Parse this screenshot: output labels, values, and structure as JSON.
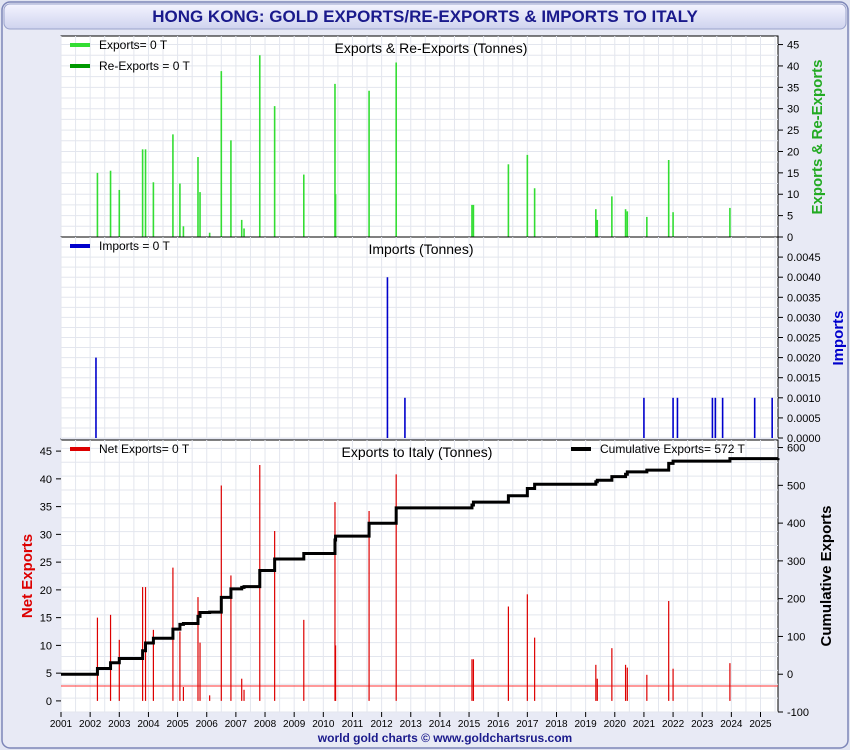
{
  "header": {
    "title": "HONG KONG: GOLD EXPORTS/RE-EXPORTS & IMPORTS TO ITALY"
  },
  "footer": {
    "credit": "world gold charts © www.goldchartsrus.com"
  },
  "colors": {
    "exports": "#33dd33",
    "reexports": "#009900",
    "imports": "#0000cc",
    "net": "#dd0000",
    "cumulative": "#000000",
    "title_text": "#1a1a8c"
  },
  "x_axis": {
    "min": 2001.0,
    "max": 2025.6,
    "ticks": [
      "2001",
      "2002",
      "2003",
      "2004",
      "2005",
      "2006",
      "2007",
      "2008",
      "2009",
      "2010",
      "2011",
      "2012",
      "2013",
      "2014",
      "2015",
      "2016",
      "2017",
      "2018",
      "2019",
      "2020",
      "2021",
      "2022",
      "2023",
      "2024",
      "2025"
    ]
  },
  "chart_data": [
    {
      "type": "bar",
      "title": "Exports & Re-Exports (Tonnes)",
      "ylabel": "Exports & Re-Exports",
      "ylim": [
        0,
        47
      ],
      "yticks": [
        "0",
        "5",
        "10",
        "15",
        "20",
        "25",
        "30",
        "35",
        "40",
        "45"
      ],
      "legend": [
        "Exports= 0 T",
        "Re-Exports = 0 T"
      ],
      "series": [
        {
          "name": "Exports",
          "x": [
            2002.25,
            2002.7,
            2003.0,
            2003.8,
            2003.9,
            2004.17,
            2004.84,
            2005.08,
            2005.2,
            2005.7,
            2005.77,
            2006.1,
            2006.5,
            2006.83,
            2007.2,
            2007.28,
            2007.82,
            2008.33,
            2009.33,
            2010.4,
            2010.42,
            2011.57,
            2012.5,
            2015.1,
            2015.15,
            2016.35,
            2017.0,
            2017.25,
            2019.35,
            2019.4,
            2019.9,
            2020.37,
            2020.43,
            2021.1,
            2021.85,
            2022.0,
            2023.95
          ],
          "values": [
            15,
            15.5,
            11,
            20.5,
            20.5,
            12.8,
            24,
            12.5,
            2.5,
            18.7,
            10.5,
            1,
            38.8,
            22.6,
            4,
            2,
            42.5,
            30.6,
            14.6,
            35.8,
            10,
            34.2,
            40.8,
            7.5,
            7.5,
            17,
            19.2,
            11.4,
            6.5,
            4,
            9.5,
            6.5,
            6,
            4.7,
            18,
            5.8,
            6.8
          ]
        }
      ]
    },
    {
      "type": "bar",
      "title": "Imports (Tonnes)",
      "ylabel": "Imports",
      "ylim": [
        0,
        0.005
      ],
      "yticks": [
        "0.0000",
        "0.0005",
        "0.0010",
        "0.0015",
        "0.0020",
        "0.0025",
        "0.0030",
        "0.0035",
        "0.0040",
        "0.0045"
      ],
      "legend": [
        "Imports = 0 T"
      ],
      "series": [
        {
          "name": "Imports",
          "x": [
            2002.2,
            2012.2,
            2012.8,
            2021.0,
            2022.0,
            2022.15,
            2023.35,
            2023.45,
            2023.7,
            2024.8,
            2025.4
          ],
          "values": [
            0.002,
            0.004,
            0.001,
            0.001,
            0.001,
            0.001,
            0.001,
            0.001,
            0.001,
            0.001,
            0.001
          ]
        }
      ]
    },
    {
      "type": "line",
      "title": "Exports to Italy (Tonnes)",
      "ylabel": "Net Exports",
      "y2label": "Cumulative Exports",
      "ylim": [
        -2,
        47
      ],
      "y2lim": [
        -100,
        620
      ],
      "yticks": [
        "0",
        "5",
        "10",
        "15",
        "20",
        "25",
        "30",
        "35",
        "40",
        "45"
      ],
      "y2ticks": [
        "-100",
        "0",
        "100",
        "200",
        "300",
        "400",
        "500",
        "600"
      ],
      "legend": [
        "Net Exports= 0 T",
        "Cumulative Exports= 572 T"
      ],
      "series": [
        {
          "name": "Net Exports",
          "x": [
            2002.25,
            2002.7,
            2003.0,
            2003.8,
            2003.9,
            2004.17,
            2004.84,
            2005.08,
            2005.2,
            2005.7,
            2005.77,
            2006.1,
            2006.5,
            2006.83,
            2007.2,
            2007.28,
            2007.82,
            2008.33,
            2009.33,
            2010.4,
            2010.42,
            2011.57,
            2012.5,
            2015.1,
            2015.15,
            2016.35,
            2017.0,
            2017.25,
            2019.35,
            2019.4,
            2019.9,
            2020.37,
            2020.43,
            2021.1,
            2021.85,
            2022.0,
            2023.95
          ],
          "values": [
            15,
            15.5,
            11,
            20.5,
            20.5,
            12.8,
            24,
            12.5,
            2.5,
            18.7,
            10.5,
            1,
            38.8,
            22.6,
            4,
            2,
            42.5,
            30.6,
            14.6,
            35.8,
            10,
            34.2,
            40.8,
            7.5,
            7.5,
            17,
            19.2,
            11.4,
            6.5,
            4,
            9.5,
            6.5,
            6,
            4.7,
            18,
            5.8,
            6.8
          ]
        },
        {
          "name": "Cumulative Exports",
          "x": [
            2001.0,
            2002.25,
            2002.7,
            2003.0,
            2003.8,
            2003.9,
            2004.17,
            2004.84,
            2005.08,
            2005.2,
            2005.7,
            2005.77,
            2006.1,
            2006.5,
            2006.83,
            2007.2,
            2007.28,
            2007.82,
            2008.33,
            2009.33,
            2010.4,
            2010.42,
            2011.57,
            2012.5,
            2015.1,
            2015.15,
            2016.35,
            2017.0,
            2017.25,
            2019.35,
            2019.4,
            2019.9,
            2020.37,
            2020.43,
            2021.1,
            2021.85,
            2022.0,
            2023.95,
            2025.6
          ],
          "values": [
            0,
            15,
            30.5,
            41.5,
            62,
            82.5,
            95.3,
            119.3,
            131.8,
            134.3,
            153,
            163.5,
            164.5,
            203.3,
            225.9,
            229.9,
            231.9,
            274.4,
            305,
            319.6,
            355.4,
            365.4,
            399.6,
            440.4,
            447.9,
            455.4,
            472.4,
            491.6,
            503,
            509.5,
            513.5,
            523,
            529.5,
            535.5,
            540.2,
            558.2,
            564,
            570.8,
            572
          ]
        }
      ]
    }
  ]
}
